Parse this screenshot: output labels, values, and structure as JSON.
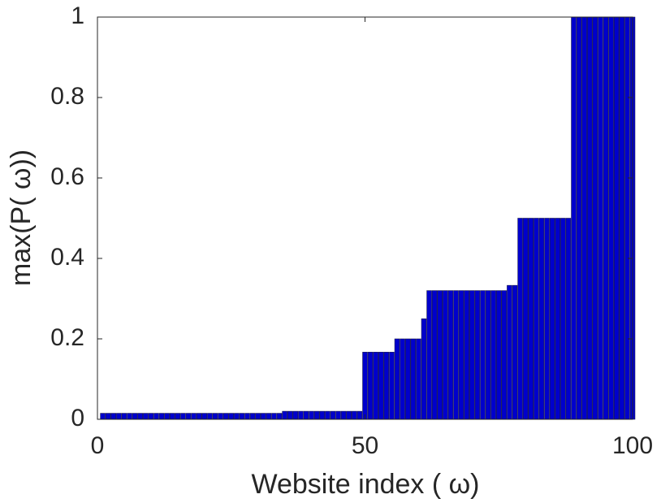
{
  "chart_data": {
    "type": "bar",
    "xlabel": "Website index (    ω)",
    "ylabel": "max(P( ω))",
    "x": [
      1,
      2,
      3,
      4,
      5,
      6,
      7,
      8,
      9,
      10,
      11,
      12,
      13,
      14,
      15,
      16,
      17,
      18,
      19,
      20,
      21,
      22,
      23,
      24,
      25,
      26,
      27,
      28,
      29,
      30,
      31,
      32,
      33,
      34,
      35,
      36,
      37,
      38,
      39,
      40,
      41,
      42,
      43,
      44,
      45,
      46,
      47,
      48,
      49,
      50,
      51,
      52,
      53,
      54,
      55,
      56,
      57,
      58,
      59,
      60,
      61,
      62,
      63,
      64,
      65,
      66,
      67,
      68,
      69,
      70,
      71,
      72,
      73,
      74,
      75,
      76,
      77,
      78,
      79,
      80,
      81,
      82,
      83,
      84,
      85,
      86,
      87,
      88,
      89,
      90,
      91,
      92,
      93,
      94,
      95,
      96,
      97,
      98,
      99,
      100
    ],
    "values": [
      0.015,
      0.015,
      0.015,
      0.015,
      0.015,
      0.015,
      0.015,
      0.015,
      0.015,
      0.015,
      0.015,
      0.015,
      0.015,
      0.015,
      0.015,
      0.015,
      0.015,
      0.015,
      0.015,
      0.015,
      0.015,
      0.015,
      0.015,
      0.015,
      0.015,
      0.015,
      0.015,
      0.015,
      0.015,
      0.015,
      0.015,
      0.015,
      0.015,
      0.015,
      0.02,
      0.02,
      0.02,
      0.02,
      0.02,
      0.02,
      0.02,
      0.02,
      0.02,
      0.02,
      0.02,
      0.02,
      0.02,
      0.02,
      0.02,
      0.167,
      0.167,
      0.167,
      0.167,
      0.167,
      0.167,
      0.2,
      0.2,
      0.2,
      0.2,
      0.2,
      0.25,
      0.32,
      0.32,
      0.32,
      0.32,
      0.32,
      0.32,
      0.32,
      0.32,
      0.32,
      0.32,
      0.32,
      0.32,
      0.32,
      0.32,
      0.32,
      0.333,
      0.333,
      0.5,
      0.5,
      0.5,
      0.5,
      0.5,
      0.5,
      0.5,
      0.5,
      0.5,
      0.5,
      1,
      1,
      1,
      1,
      1,
      1,
      1,
      1,
      1,
      1,
      1,
      1
    ],
    "color": "#0000cc",
    "xlim": [
      0,
      100
    ],
    "xticks": [
      0,
      50,
      100
    ],
    "ylim": [
      0,
      1
    ],
    "yticks": [
      0,
      0.2,
      0.4,
      0.6,
      0.8,
      1
    ],
    "grid": false
  }
}
